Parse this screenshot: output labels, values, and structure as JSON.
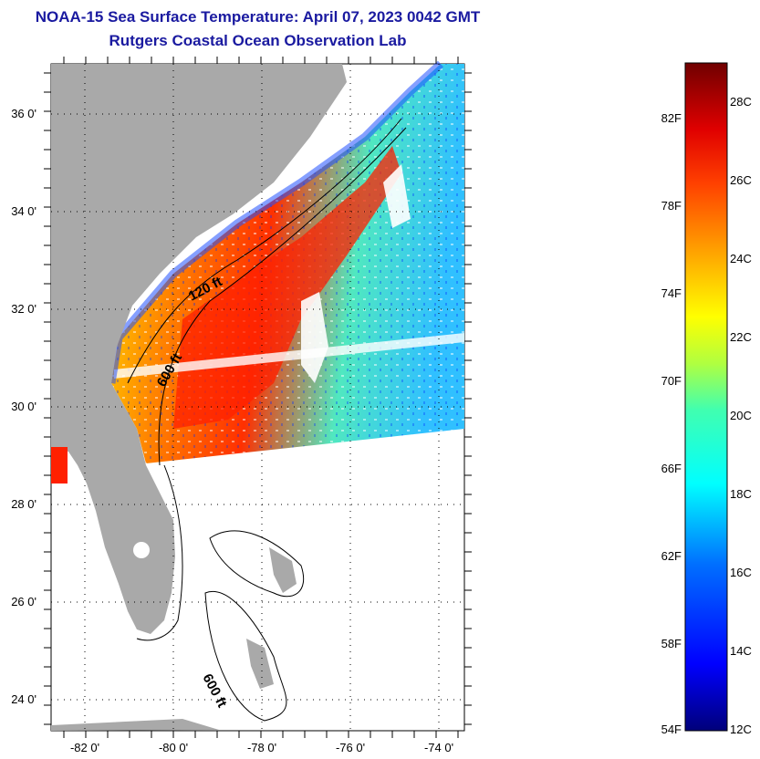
{
  "title": {
    "line1": "NOAA-15 Sea Surface Temperature:  April 07, 2023 0042 GMT",
    "line2": "Rutgers Coastal Ocean Observation Lab"
  },
  "map": {
    "lat_labels": [
      "36 0'",
      "34 0'",
      "32 0'",
      "30 0'",
      "28 0'",
      "26 0'",
      "24 0'"
    ],
    "lat_values": [
      36,
      34,
      32,
      30,
      28,
      26,
      24
    ],
    "lon_labels": [
      "-82 0'",
      "-80 0'",
      "-78 0'",
      "-76 0'",
      "-74 0'"
    ],
    "lon_values": [
      -82,
      -80,
      -78,
      -76,
      -74
    ],
    "contour_labels": [
      "120 ft",
      "600 ft",
      "600 ft"
    ],
    "colors": {
      "land": "#a9a9a9",
      "ocean_nodata": "#ffffff",
      "grid": "#000000"
    }
  },
  "colorbar": {
    "fahrenheit_labels": [
      "82F",
      "78F",
      "74F",
      "70F",
      "66F",
      "62F",
      "58F",
      "54F"
    ],
    "celsius_labels": [
      "28C",
      "26C",
      "24C",
      "22C",
      "20C",
      "18C",
      "16C",
      "14C",
      "12C"
    ],
    "scale_colors": [
      "#000090",
      "#0000ff",
      "#0080ff",
      "#00ffff",
      "#40ffb0",
      "#b0ff40",
      "#ffff00",
      "#ffb000",
      "#ff6000",
      "#ff0000",
      "#c00000",
      "#800000"
    ]
  }
}
